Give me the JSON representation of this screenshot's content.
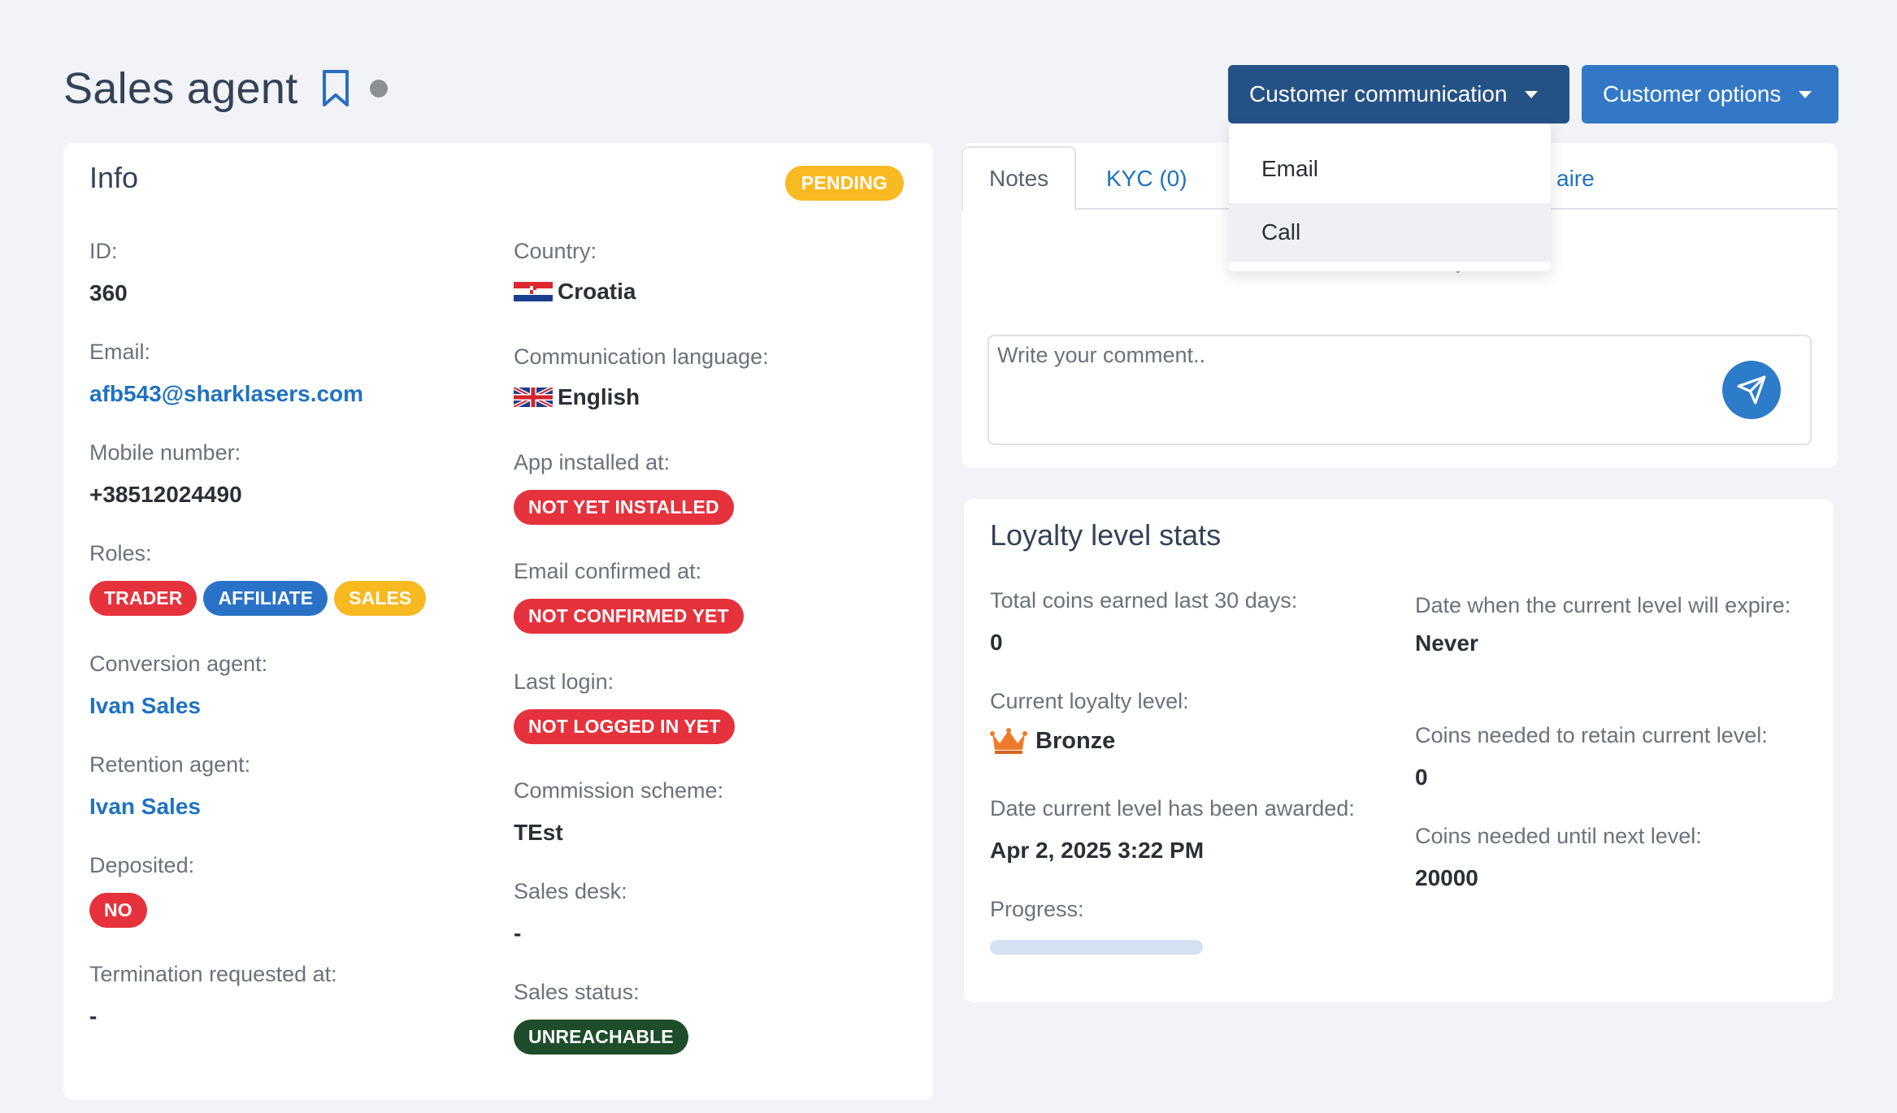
{
  "header": {
    "title": "Sales agent",
    "buttons": {
      "customer_communication": "Customer communication",
      "customer_options": "Customer options"
    }
  },
  "info": {
    "title": "Info",
    "status_badge": "PENDING",
    "left": {
      "id_label": "ID:",
      "id_value": "360",
      "email_label": "Email:",
      "email_value": "afb543@sharklasers.com",
      "mobile_label": "Mobile number:",
      "mobile_value": "+38512024490",
      "roles_label": "Roles:",
      "roles": [
        "TRADER",
        "AFFILIATE",
        "SALES"
      ],
      "conversion_label": "Conversion agent:",
      "conversion_value": "Ivan Sales",
      "retention_label": "Retention agent:",
      "retention_value": "Ivan Sales",
      "deposited_label": "Deposited:",
      "deposited_value": "NO",
      "termination_label": "Termination requested at:",
      "termination_value": "-"
    },
    "right": {
      "country_label": "Country:",
      "country_value": "Croatia",
      "language_label": "Communication language:",
      "language_value": "English",
      "app_label": "App installed at:",
      "app_value": "NOT YET INSTALLED",
      "email_confirmed_label": "Email confirmed at:",
      "email_confirmed_value": "NOT CONFIRMED YET",
      "last_login_label": "Last login:",
      "last_login_value": "NOT LOGGED IN YET",
      "commission_label": "Commission scheme:",
      "commission_value": "TEst",
      "sales_desk_label": "Sales desk:",
      "sales_desk_value": "-",
      "sales_status_label": "Sales status:",
      "sales_status_value": "UNREACHABLE"
    }
  },
  "tabs": {
    "notes": "Notes",
    "kyc": "KYC (0)",
    "questionnaire_partial": "aire",
    "no_comments": "No comments yet",
    "comment_placeholder": "Write your comment.."
  },
  "dropdown": {
    "items": [
      "Email",
      "Call"
    ]
  },
  "loyalty": {
    "title": "Loyalty level stats",
    "total_coins_label": "Total coins earned last 30 days:",
    "total_coins_value": "0",
    "current_level_label": "Current loyalty level:",
    "current_level_value": "Bronze",
    "date_awarded_label": "Date current level has been awarded:",
    "date_awarded_value": "Apr 2, 2025 3:22 PM",
    "progress_label": "Progress:",
    "progress_fraction": 0,
    "expire_label": "Date when the current level will expire:",
    "expire_value": "Never",
    "retain_label": "Coins needed to retain current level:",
    "retain_value": "0",
    "next_level_label": "Coins needed until next level:",
    "next_level_value": "20000"
  },
  "colors": {
    "primary_dark": "#255286",
    "primary": "#3278c6",
    "link": "#1f72c0",
    "red": "#e5323c",
    "yellow": "#f8b921",
    "green": "#1d4d2a"
  }
}
